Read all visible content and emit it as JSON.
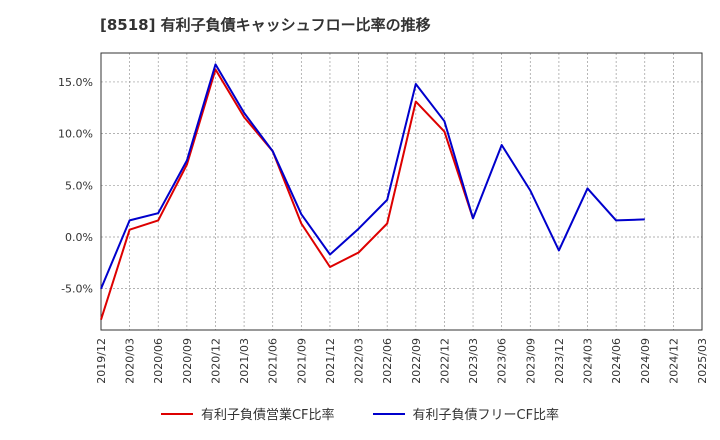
{
  "title": "[8518]  有利子負債キャッシュフロー比率の推移",
  "colors": {
    "operating": "#dd0000",
    "free": "#0000cc"
  },
  "chart_data": {
    "type": "line",
    "title": "[8518]  有利子負債キャッシュフロー比率の推移",
    "xlabel": "",
    "ylabel": "",
    "x": [
      "2019/12",
      "2020/03",
      "2020/06",
      "2020/09",
      "2020/12",
      "2021/03",
      "2021/06",
      "2021/09",
      "2021/12",
      "2022/03",
      "2022/06",
      "2022/09",
      "2022/12",
      "2023/03",
      "2023/06",
      "2023/09",
      "2023/12",
      "2024/03",
      "2024/06",
      "2024/09",
      "2024/12",
      "2025/03"
    ],
    "yticks": [
      -5.0,
      0.0,
      5.0,
      10.0,
      15.0
    ],
    "ytick_labels": [
      "-5.0%",
      "0.0%",
      "5.0%",
      "10.0%",
      "15.0%"
    ],
    "ylim": [
      -9.0,
      17.8
    ],
    "grid": true,
    "legend_position": "bottom",
    "series": [
      {
        "name": "有利子負債営業CF比率",
        "color": "#dd0000",
        "points": [
          {
            "x": "2019/12",
            "y": -8.0
          },
          {
            "x": "2020/03",
            "y": 0.7
          },
          {
            "x": "2020/06",
            "y": 1.6
          },
          {
            "x": "2020/09",
            "y": 7.0
          },
          {
            "x": "2020/12",
            "y": 16.2
          },
          {
            "x": "2021/03",
            "y": 11.6
          },
          {
            "x": "2021/06",
            "y": 8.3
          },
          {
            "x": "2021/09",
            "y": 1.3
          },
          {
            "x": "2021/12",
            "y": -2.9
          },
          {
            "x": "2022/03",
            "y": -1.5
          },
          {
            "x": "2022/06",
            "y": 1.3
          },
          {
            "x": "2022/09",
            "y": 13.1
          },
          {
            "x": "2022/12",
            "y": 10.2
          },
          {
            "x": "2023/03",
            "y": 1.8
          }
        ]
      },
      {
        "name": "有利子負債フリーCF比率",
        "color": "#0000cc",
        "points": [
          {
            "x": "2019/12",
            "y": -5.0
          },
          {
            "x": "2020/03",
            "y": 1.6
          },
          {
            "x": "2020/06",
            "y": 2.3
          },
          {
            "x": "2020/09",
            "y": 7.4
          },
          {
            "x": "2020/12",
            "y": 16.7
          },
          {
            "x": "2021/03",
            "y": 12.0
          },
          {
            "x": "2021/06",
            "y": 8.3
          },
          {
            "x": "2021/09",
            "y": 2.2
          },
          {
            "x": "2021/12",
            "y": -1.7
          },
          {
            "x": "2022/03",
            "y": 0.8
          },
          {
            "x": "2022/06",
            "y": 3.6
          },
          {
            "x": "2022/09",
            "y": 14.8
          },
          {
            "x": "2022/12",
            "y": 11.2
          },
          {
            "x": "2023/03",
            "y": 1.8
          },
          {
            "x": "2023/06",
            "y": 8.9
          },
          {
            "x": "2023/09",
            "y": 4.5
          },
          {
            "x": "2023/12",
            "y": -1.3
          },
          {
            "x": "2024/03",
            "y": 4.7
          },
          {
            "x": "2024/06",
            "y": 1.6
          },
          {
            "x": "2024/09",
            "y": 1.7
          }
        ]
      }
    ]
  }
}
